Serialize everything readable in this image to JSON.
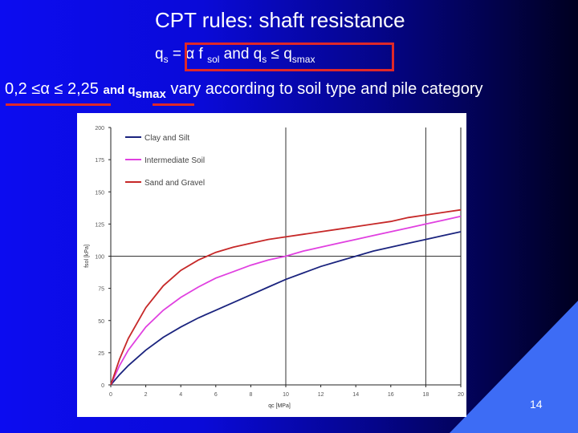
{
  "slide": {
    "title": "CPT rules: shaft resistance",
    "formula": {
      "q": "q",
      "s1": "s",
      "eq": " = ",
      "alpha": "α",
      "f": " f ",
      "sol": "sol",
      "and": " and q",
      "s2": "s",
      "le": " ≤ q",
      "smax": "smax"
    },
    "subtitle": {
      "range": "0,2 ≤α ≤ 2,25",
      "and": " and q",
      "smax": "smax",
      "rest": " vary according to soil type and pile category"
    },
    "page_number": "14",
    "accent_color": "#e02828"
  },
  "chart_data": {
    "type": "line",
    "xlabel": "qc [MPa]",
    "ylabel": "fsol [kPa]",
    "xlim": [
      0,
      20
    ],
    "ylim": [
      0,
      200
    ],
    "xticks": [
      0,
      2,
      4,
      6,
      8,
      10,
      12,
      14,
      16,
      18,
      20
    ],
    "yticks": [
      0,
      25,
      50,
      75,
      100,
      125,
      150,
      175,
      200
    ],
    "reference_lines": {
      "x": [
        10,
        18
      ],
      "y": [
        100
      ]
    },
    "legend": "top-left",
    "series": [
      {
        "name": "Clay and Silt",
        "color": "#1a237e",
        "x": [
          0,
          0.5,
          1,
          2,
          3,
          4,
          5,
          6,
          7,
          8,
          9,
          10,
          11,
          12,
          13,
          14,
          15,
          16,
          17,
          18,
          19,
          20
        ],
        "y": [
          0,
          8,
          15,
          27,
          37,
          45,
          52,
          58,
          64,
          70,
          76,
          82,
          87,
          92,
          96,
          100,
          104,
          107,
          110,
          113,
          116,
          119
        ]
      },
      {
        "name": "Intermediate Soil",
        "color": "#e040e0",
        "x": [
          0,
          0.5,
          1,
          2,
          3,
          4,
          5,
          6,
          7,
          8,
          9,
          10,
          11,
          12,
          13,
          14,
          15,
          16,
          17,
          18,
          19,
          20
        ],
        "y": [
          0,
          15,
          27,
          45,
          58,
          68,
          76,
          83,
          88,
          93,
          97,
          100,
          104,
          107,
          110,
          113,
          116,
          119,
          122,
          125,
          128,
          131
        ]
      },
      {
        "name": "Sand and Gravel",
        "color": "#c62828",
        "x": [
          0,
          0.5,
          1,
          2,
          3,
          4,
          5,
          6,
          7,
          8,
          9,
          10,
          11,
          12,
          13,
          14,
          15,
          16,
          17,
          18,
          19,
          20
        ],
        "y": [
          0,
          20,
          36,
          60,
          77,
          89,
          97,
          103,
          107,
          110,
          113,
          115,
          117,
          119,
          121,
          123,
          125,
          127,
          130,
          132,
          134,
          136
        ]
      }
    ]
  }
}
